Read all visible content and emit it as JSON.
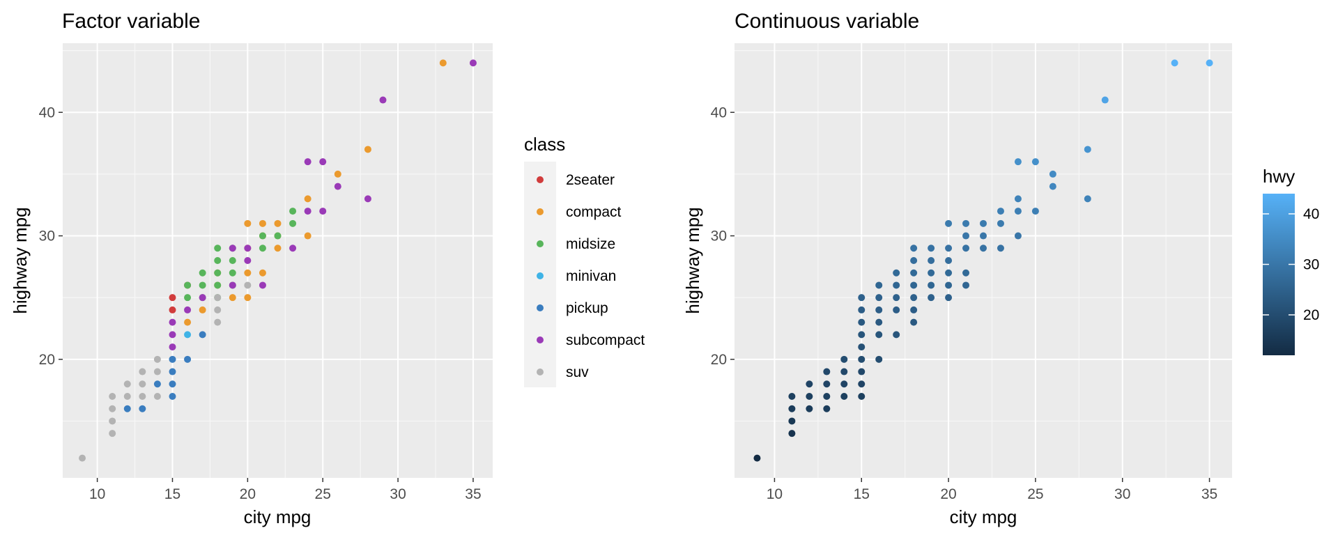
{
  "chart_data": [
    {
      "type": "scatter",
      "title": "Factor variable",
      "xlabel": "city mpg",
      "ylabel": "highway mpg",
      "xlim": [
        7.7,
        36.3
      ],
      "ylim": [
        10.4,
        45.6
      ],
      "xticks": [
        10,
        15,
        20,
        25,
        30,
        35
      ],
      "yticks": [
        20,
        30,
        40
      ],
      "grid": true,
      "color_mode": "factor",
      "legend": {
        "title": "class",
        "placement": "right",
        "entries": [
          "2seater",
          "compact",
          "midsize",
          "minivan",
          "pickup",
          "subcompact",
          "suv"
        ]
      },
      "colors": {
        "2seater": "#d13c3c",
        "compact": "#eb9a2e",
        "midsize": "#58b55b",
        "minivan": "#3fb3e6",
        "pickup": "#3a7dbf",
        "subcompact": "#9a3ab7",
        "suv": "#b3b3b3"
      },
      "points": [
        {
          "x": 15,
          "y": 25,
          "class": "2seater"
        },
        {
          "x": 15,
          "y": 24,
          "class": "2seater"
        },
        {
          "x": 16,
          "y": 26,
          "class": "2seater"
        },
        {
          "x": 33,
          "y": 44,
          "class": "compact"
        },
        {
          "x": 28,
          "y": 37,
          "class": "compact"
        },
        {
          "x": 26,
          "y": 35,
          "class": "compact"
        },
        {
          "x": 24,
          "y": 33,
          "class": "compact"
        },
        {
          "x": 24,
          "y": 30,
          "class": "compact"
        },
        {
          "x": 20,
          "y": 31,
          "class": "compact"
        },
        {
          "x": 21,
          "y": 31,
          "class": "compact"
        },
        {
          "x": 22,
          "y": 31,
          "class": "compact"
        },
        {
          "x": 21,
          "y": 30,
          "class": "compact"
        },
        {
          "x": 22,
          "y": 30,
          "class": "compact"
        },
        {
          "x": 22,
          "y": 29,
          "class": "compact"
        },
        {
          "x": 20,
          "y": 29,
          "class": "compact"
        },
        {
          "x": 18,
          "y": 27,
          "class": "compact"
        },
        {
          "x": 20,
          "y": 27,
          "class": "compact"
        },
        {
          "x": 21,
          "y": 27,
          "class": "compact"
        },
        {
          "x": 18,
          "y": 26,
          "class": "compact"
        },
        {
          "x": 19,
          "y": 25,
          "class": "compact"
        },
        {
          "x": 20,
          "y": 25,
          "class": "compact"
        },
        {
          "x": 17,
          "y": 24,
          "class": "compact"
        },
        {
          "x": 16,
          "y": 23,
          "class": "compact"
        },
        {
          "x": 23,
          "y": 32,
          "class": "midsize"
        },
        {
          "x": 23,
          "y": 31,
          "class": "midsize"
        },
        {
          "x": 21,
          "y": 30,
          "class": "midsize"
        },
        {
          "x": 22,
          "y": 30,
          "class": "midsize"
        },
        {
          "x": 18,
          "y": 29,
          "class": "midsize"
        },
        {
          "x": 19,
          "y": 29,
          "class": "midsize"
        },
        {
          "x": 21,
          "y": 29,
          "class": "midsize"
        },
        {
          "x": 18,
          "y": 28,
          "class": "midsize"
        },
        {
          "x": 19,
          "y": 28,
          "class": "midsize"
        },
        {
          "x": 17,
          "y": 27,
          "class": "midsize"
        },
        {
          "x": 18,
          "y": 27,
          "class": "midsize"
        },
        {
          "x": 19,
          "y": 27,
          "class": "midsize"
        },
        {
          "x": 16,
          "y": 26,
          "class": "midsize"
        },
        {
          "x": 17,
          "y": 26,
          "class": "midsize"
        },
        {
          "x": 18,
          "y": 26,
          "class": "midsize"
        },
        {
          "x": 19,
          "y": 26,
          "class": "midsize"
        },
        {
          "x": 16,
          "y": 25,
          "class": "midsize"
        },
        {
          "x": 17,
          "y": 25,
          "class": "midsize"
        },
        {
          "x": 18,
          "y": 25,
          "class": "midsize"
        },
        {
          "x": 16,
          "y": 22,
          "class": "minivan"
        },
        {
          "x": 17,
          "y": 22,
          "class": "pickup"
        },
        {
          "x": 16,
          "y": 20,
          "class": "pickup"
        },
        {
          "x": 15,
          "y": 20,
          "class": "pickup"
        },
        {
          "x": 15,
          "y": 19,
          "class": "pickup"
        },
        {
          "x": 15,
          "y": 18,
          "class": "pickup"
        },
        {
          "x": 14,
          "y": 18,
          "class": "pickup"
        },
        {
          "x": 15,
          "y": 17,
          "class": "pickup"
        },
        {
          "x": 12,
          "y": 16,
          "class": "pickup"
        },
        {
          "x": 13,
          "y": 16,
          "class": "pickup"
        },
        {
          "x": 35,
          "y": 44,
          "class": "subcompact"
        },
        {
          "x": 29,
          "y": 41,
          "class": "subcompact"
        },
        {
          "x": 24,
          "y": 36,
          "class": "subcompact"
        },
        {
          "x": 25,
          "y": 36,
          "class": "subcompact"
        },
        {
          "x": 26,
          "y": 34,
          "class": "subcompact"
        },
        {
          "x": 28,
          "y": 33,
          "class": "subcompact"
        },
        {
          "x": 24,
          "y": 32,
          "class": "subcompact"
        },
        {
          "x": 25,
          "y": 32,
          "class": "subcompact"
        },
        {
          "x": 23,
          "y": 29,
          "class": "subcompact"
        },
        {
          "x": 19,
          "y": 29,
          "class": "subcompact"
        },
        {
          "x": 20,
          "y": 29,
          "class": "subcompact"
        },
        {
          "x": 20,
          "y": 28,
          "class": "subcompact"
        },
        {
          "x": 19,
          "y": 26,
          "class": "subcompact"
        },
        {
          "x": 21,
          "y": 26,
          "class": "subcompact"
        },
        {
          "x": 17,
          "y": 25,
          "class": "subcompact"
        },
        {
          "x": 16,
          "y": 24,
          "class": "subcompact"
        },
        {
          "x": 15,
          "y": 23,
          "class": "subcompact"
        },
        {
          "x": 15,
          "y": 22,
          "class": "subcompact"
        },
        {
          "x": 15,
          "y": 21,
          "class": "subcompact"
        },
        {
          "x": 20,
          "y": 26,
          "class": "suv"
        },
        {
          "x": 18,
          "y": 25,
          "class": "suv"
        },
        {
          "x": 18,
          "y": 24,
          "class": "suv"
        },
        {
          "x": 18,
          "y": 23,
          "class": "suv"
        },
        {
          "x": 14,
          "y": 20,
          "class": "suv"
        },
        {
          "x": 13,
          "y": 19,
          "class": "suv"
        },
        {
          "x": 14,
          "y": 19,
          "class": "suv"
        },
        {
          "x": 12,
          "y": 18,
          "class": "suv"
        },
        {
          "x": 13,
          "y": 18,
          "class": "suv"
        },
        {
          "x": 11,
          "y": 17,
          "class": "suv"
        },
        {
          "x": 12,
          "y": 17,
          "class": "suv"
        },
        {
          "x": 13,
          "y": 17,
          "class": "suv"
        },
        {
          "x": 14,
          "y": 17,
          "class": "suv"
        },
        {
          "x": 11,
          "y": 16,
          "class": "suv"
        },
        {
          "x": 11,
          "y": 15,
          "class": "suv"
        },
        {
          "x": 11,
          "y": 14,
          "class": "suv"
        },
        {
          "x": 9,
          "y": 12,
          "class": "suv"
        }
      ]
    },
    {
      "type": "scatter",
      "title": "Continuous variable",
      "xlabel": "city mpg",
      "ylabel": "highway mpg",
      "xlim": [
        7.7,
        36.3
      ],
      "ylim": [
        10.4,
        45.6
      ],
      "xticks": [
        10,
        15,
        20,
        25,
        30,
        35
      ],
      "yticks": [
        20,
        30,
        40
      ],
      "grid": true,
      "color_mode": "continuous",
      "legend": {
        "title": "hwy",
        "placement": "right",
        "scale_range": [
          12,
          44
        ],
        "scale_ticks": [
          20,
          30,
          40
        ],
        "color_low": "#132b43",
        "color_high": "#56b1f7"
      },
      "points": [
        {
          "x": 35,
          "y": 44
        },
        {
          "x": 33,
          "y": 44
        },
        {
          "x": 29,
          "y": 41
        },
        {
          "x": 28,
          "y": 37
        },
        {
          "x": 28,
          "y": 33
        },
        {
          "x": 24,
          "y": 36
        },
        {
          "x": 25,
          "y": 36
        },
        {
          "x": 26,
          "y": 35
        },
        {
          "x": 26,
          "y": 34
        },
        {
          "x": 24,
          "y": 33
        },
        {
          "x": 23,
          "y": 32
        },
        {
          "x": 24,
          "y": 32
        },
        {
          "x": 25,
          "y": 32
        },
        {
          "x": 20,
          "y": 31
        },
        {
          "x": 21,
          "y": 31
        },
        {
          "x": 22,
          "y": 31
        },
        {
          "x": 23,
          "y": 31
        },
        {
          "x": 21,
          "y": 30
        },
        {
          "x": 22,
          "y": 30
        },
        {
          "x": 24,
          "y": 30
        },
        {
          "x": 18,
          "y": 29
        },
        {
          "x": 19,
          "y": 29
        },
        {
          "x": 20,
          "y": 29
        },
        {
          "x": 21,
          "y": 29
        },
        {
          "x": 22,
          "y": 29
        },
        {
          "x": 23,
          "y": 29
        },
        {
          "x": 18,
          "y": 28
        },
        {
          "x": 19,
          "y": 28
        },
        {
          "x": 20,
          "y": 28
        },
        {
          "x": 17,
          "y": 27
        },
        {
          "x": 18,
          "y": 27
        },
        {
          "x": 19,
          "y": 27
        },
        {
          "x": 20,
          "y": 27
        },
        {
          "x": 21,
          "y": 27
        },
        {
          "x": 16,
          "y": 26
        },
        {
          "x": 17,
          "y": 26
        },
        {
          "x": 18,
          "y": 26
        },
        {
          "x": 19,
          "y": 26
        },
        {
          "x": 20,
          "y": 26
        },
        {
          "x": 21,
          "y": 26
        },
        {
          "x": 15,
          "y": 25
        },
        {
          "x": 16,
          "y": 25
        },
        {
          "x": 17,
          "y": 25
        },
        {
          "x": 18,
          "y": 25
        },
        {
          "x": 19,
          "y": 25
        },
        {
          "x": 20,
          "y": 25
        },
        {
          "x": 15,
          "y": 24
        },
        {
          "x": 16,
          "y": 24
        },
        {
          "x": 17,
          "y": 24
        },
        {
          "x": 18,
          "y": 24
        },
        {
          "x": 15,
          "y": 23
        },
        {
          "x": 16,
          "y": 23
        },
        {
          "x": 18,
          "y": 23
        },
        {
          "x": 15,
          "y": 22
        },
        {
          "x": 16,
          "y": 22
        },
        {
          "x": 17,
          "y": 22
        },
        {
          "x": 15,
          "y": 21
        },
        {
          "x": 14,
          "y": 20
        },
        {
          "x": 15,
          "y": 20
        },
        {
          "x": 16,
          "y": 20
        },
        {
          "x": 13,
          "y": 19
        },
        {
          "x": 14,
          "y": 19
        },
        {
          "x": 15,
          "y": 19
        },
        {
          "x": 12,
          "y": 18
        },
        {
          "x": 13,
          "y": 18
        },
        {
          "x": 14,
          "y": 18
        },
        {
          "x": 15,
          "y": 18
        },
        {
          "x": 11,
          "y": 17
        },
        {
          "x": 12,
          "y": 17
        },
        {
          "x": 13,
          "y": 17
        },
        {
          "x": 14,
          "y": 17
        },
        {
          "x": 15,
          "y": 17
        },
        {
          "x": 11,
          "y": 16
        },
        {
          "x": 12,
          "y": 16
        },
        {
          "x": 13,
          "y": 16
        },
        {
          "x": 11,
          "y": 15
        },
        {
          "x": 11,
          "y": 14
        },
        {
          "x": 9,
          "y": 12
        }
      ]
    }
  ]
}
